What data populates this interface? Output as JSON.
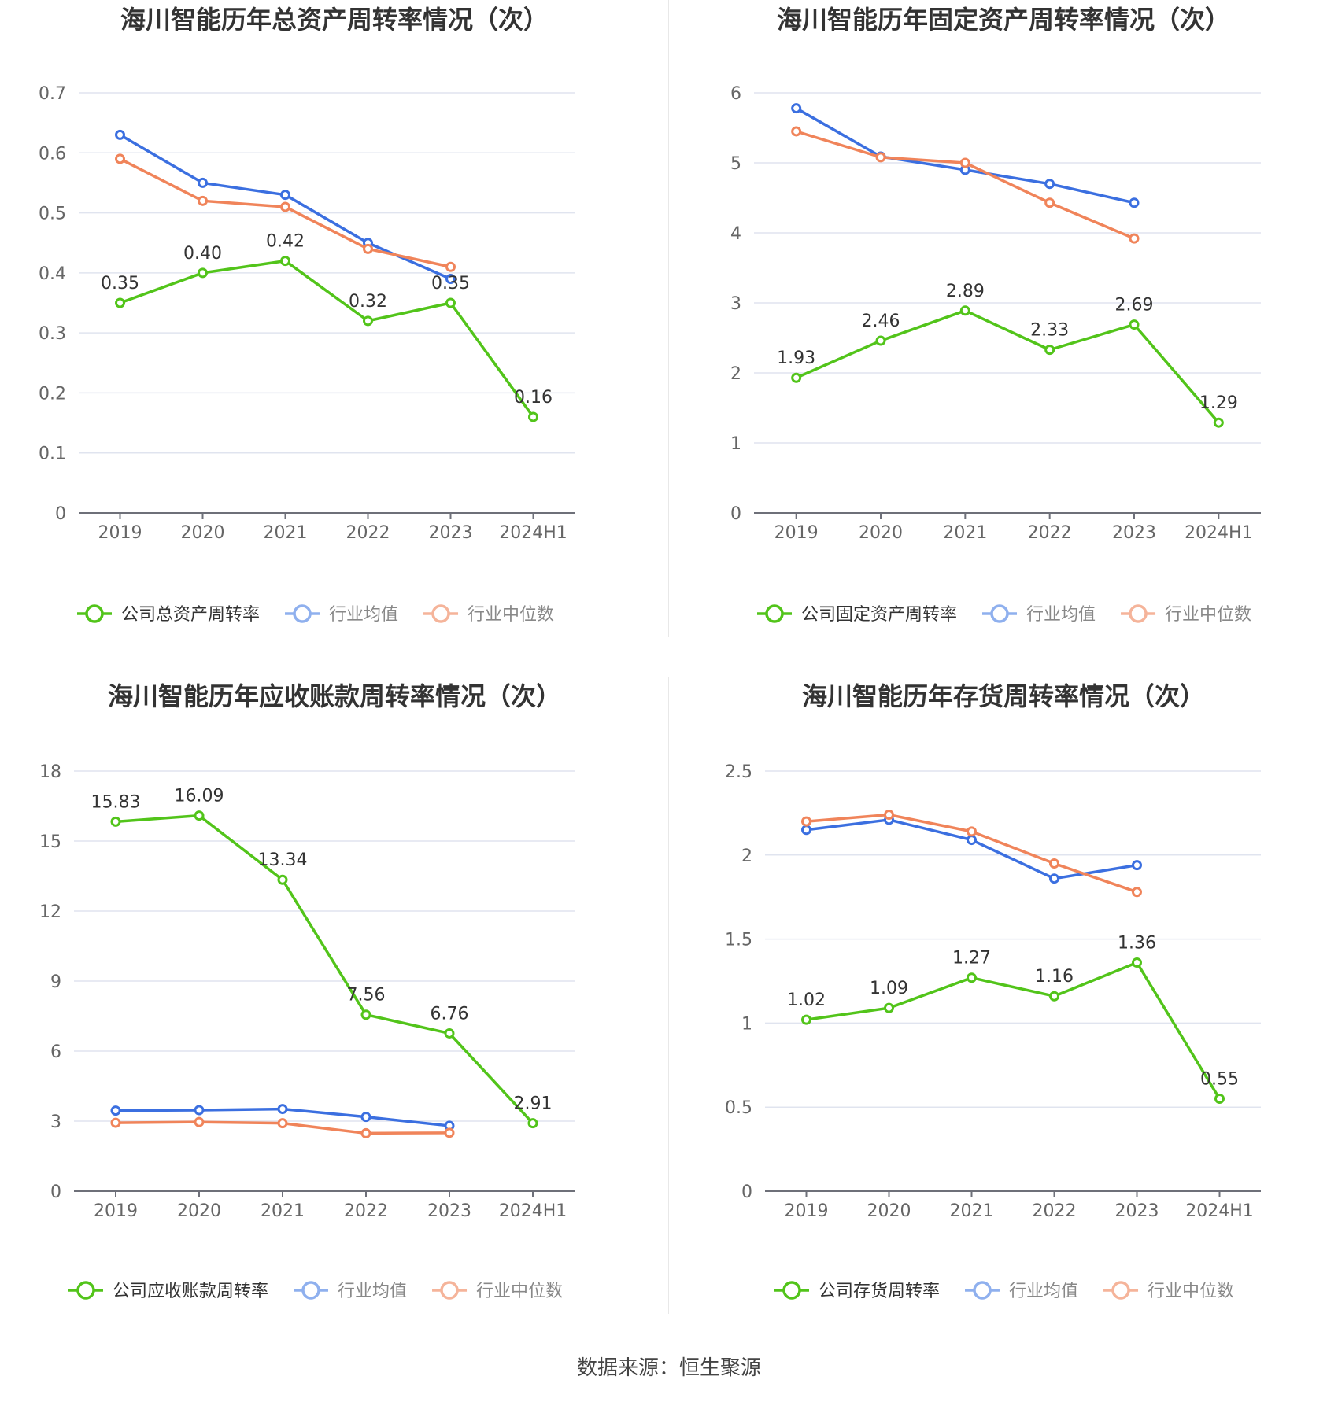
{
  "source_label": "数据来源：恒生聚源",
  "colors": {
    "company": "#52c41a",
    "average": "#3b6fe0",
    "median": "#f0845a",
    "grid": "#e0e4ef",
    "axis": "#666666",
    "label": "#333333"
  },
  "chart_data": [
    {
      "type": "line",
      "title": "海川智能历年总资产周转率情况（次）",
      "categories": [
        "2019",
        "2020",
        "2021",
        "2022",
        "2023",
        "2024H1"
      ],
      "ylim": [
        0,
        0.7
      ],
      "yticks": [
        "0",
        "0.1",
        "0.2",
        "0.3",
        "0.4",
        "0.5",
        "0.6",
        "0.7"
      ],
      "grid": true,
      "legend_position": "bottom",
      "series": [
        {
          "name": "公司总资产周转率",
          "values": [
            0.35,
            0.4,
            0.42,
            0.32,
            0.35,
            0.16
          ],
          "labels": [
            "0.35",
            "0.40",
            "0.42",
            "0.32",
            "0.35",
            "0.16"
          ]
        },
        {
          "name": "行业均值",
          "values": [
            0.63,
            0.55,
            0.53,
            0.45,
            0.39,
            null
          ]
        },
        {
          "name": "行业中位数",
          "values": [
            0.59,
            0.52,
            0.51,
            0.44,
            0.41,
            null
          ]
        }
      ]
    },
    {
      "type": "line",
      "title": "海川智能历年固定资产周转率情况（次）",
      "categories": [
        "2019",
        "2020",
        "2021",
        "2022",
        "2023",
        "2024H1"
      ],
      "ylim": [
        0,
        6
      ],
      "yticks": [
        "0",
        "1",
        "2",
        "3",
        "4",
        "5",
        "6"
      ],
      "grid": true,
      "legend_position": "bottom",
      "series": [
        {
          "name": "公司固定资产周转率",
          "values": [
            1.93,
            2.46,
            2.89,
            2.33,
            2.69,
            1.29
          ],
          "labels": [
            "1.93",
            "2.46",
            "2.89",
            "2.33",
            "2.69",
            "1.29"
          ]
        },
        {
          "name": "行业均值",
          "values": [
            5.78,
            5.09,
            4.9,
            4.7,
            4.43,
            null
          ]
        },
        {
          "name": "行业中位数",
          "values": [
            5.45,
            5.08,
            5.0,
            4.43,
            3.92,
            null
          ]
        }
      ]
    },
    {
      "type": "line",
      "title": "海川智能历年应收账款周转率情况（次）",
      "categories": [
        "2019",
        "2020",
        "2021",
        "2022",
        "2023",
        "2024H1"
      ],
      "ylim": [
        0,
        18
      ],
      "yticks": [
        "0",
        "3",
        "6",
        "9",
        "12",
        "15",
        "18"
      ],
      "grid": true,
      "legend_position": "bottom",
      "series": [
        {
          "name": "公司应收账款周转率",
          "values": [
            15.83,
            16.09,
            13.34,
            7.56,
            6.76,
            2.91
          ],
          "labels": [
            "15.83",
            "16.09",
            "13.34",
            "7.56",
            "6.76",
            "2.91"
          ]
        },
        {
          "name": "行业均值",
          "values": [
            3.45,
            3.47,
            3.52,
            3.18,
            2.8,
            null
          ]
        },
        {
          "name": "行业中位数",
          "values": [
            2.93,
            2.96,
            2.91,
            2.48,
            2.5,
            null
          ]
        }
      ]
    },
    {
      "type": "line",
      "title": "海川智能历年存货周转率情况（次）",
      "categories": [
        "2019",
        "2020",
        "2021",
        "2022",
        "2023",
        "2024H1"
      ],
      "ylim": [
        0,
        2.5
      ],
      "yticks": [
        "0",
        "0.5",
        "1",
        "1.5",
        "2",
        "2.5"
      ],
      "grid": true,
      "legend_position": "bottom",
      "series": [
        {
          "name": "公司存货周转率",
          "values": [
            1.02,
            1.09,
            1.27,
            1.16,
            1.36,
            0.55
          ],
          "labels": [
            "1.02",
            "1.09",
            "1.27",
            "1.16",
            "1.36",
            "0.55"
          ]
        },
        {
          "name": "行业均值",
          "values": [
            2.15,
            2.21,
            2.09,
            1.86,
            1.94,
            null
          ]
        },
        {
          "name": "行业中位数",
          "values": [
            2.2,
            2.24,
            2.14,
            1.95,
            1.78,
            null
          ]
        }
      ]
    }
  ]
}
